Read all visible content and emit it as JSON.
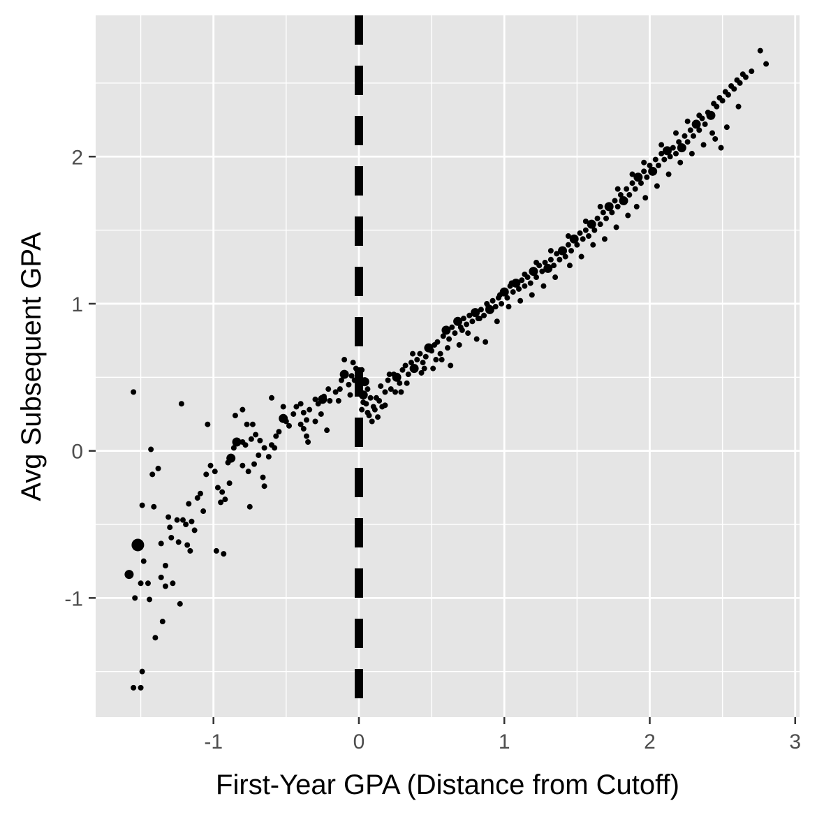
{
  "chart_data": {
    "type": "scatter",
    "title": "",
    "xlabel": "First-Year GPA (Distance from Cutoff)",
    "ylabel": "Avg Subsequent GPA",
    "xlim": [
      -1.81,
      3.03
    ],
    "ylim": [
      -1.81,
      2.96
    ],
    "x_ticks": [
      -1,
      0,
      1,
      2,
      3
    ],
    "x_tick_labels": [
      "-1",
      "0",
      "1",
      "2",
      "3"
    ],
    "y_ticks": [
      -1,
      0,
      1,
      2
    ],
    "y_tick_labels": [
      "-1",
      "0",
      "1",
      "2"
    ],
    "grid": true,
    "legend": "none",
    "cutoff_line": {
      "x": 0,
      "style": "dashed"
    },
    "colors": {
      "panel": "#e5e5e5",
      "grid": "#ffffff",
      "points": "#000000",
      "cutoff": "#000000"
    },
    "points": [
      [
        -1.55,
        0.4,
        1
      ],
      [
        -1.58,
        -0.84,
        2
      ],
      [
        -1.52,
        -0.64,
        3
      ],
      [
        -1.48,
        -0.75,
        1
      ],
      [
        -1.45,
        -0.9,
        1
      ],
      [
        -1.5,
        -0.9,
        1
      ],
      [
        -1.54,
        -1.0,
        1
      ],
      [
        -1.44,
        -1.01,
        1
      ],
      [
        -1.4,
        -1.27,
        1
      ],
      [
        -1.35,
        -1.16,
        1
      ],
      [
        -1.33,
        -0.92,
        1
      ],
      [
        -1.36,
        -0.86,
        1
      ],
      [
        -1.33,
        -0.78,
        1
      ],
      [
        -1.36,
        -0.63,
        1
      ],
      [
        -1.41,
        -0.38,
        1
      ],
      [
        -1.43,
        0.01,
        1
      ],
      [
        -1.42,
        -0.16,
        1
      ],
      [
        -1.38,
        -0.12,
        1
      ],
      [
        -1.49,
        -0.37,
        1
      ],
      [
        -1.55,
        -1.61,
        1
      ],
      [
        -1.49,
        -1.5,
        1
      ],
      [
        -1.5,
        -1.61,
        1
      ],
      [
        -1.28,
        -0.9,
        1
      ],
      [
        -1.23,
        -1.04,
        1
      ],
      [
        -1.29,
        -0.59,
        1
      ],
      [
        -1.24,
        -0.62,
        1
      ],
      [
        -1.3,
        -0.52,
        1
      ],
      [
        -1.31,
        -0.45,
        1
      ],
      [
        -1.25,
        -0.47,
        1
      ],
      [
        -1.21,
        -0.47,
        1
      ],
      [
        -1.19,
        -0.5,
        1
      ],
      [
        -1.15,
        -0.48,
        1
      ],
      [
        -1.17,
        -0.36,
        1
      ],
      [
        -1.13,
        -0.54,
        1
      ],
      [
        -1.18,
        -0.64,
        1
      ],
      [
        -1.16,
        -0.68,
        1
      ],
      [
        -1.11,
        -0.32,
        1
      ],
      [
        -1.09,
        -0.29,
        1
      ],
      [
        -1.07,
        -0.41,
        1
      ],
      [
        -1.05,
        -0.16,
        1
      ],
      [
        -1.02,
        -0.1,
        1
      ],
      [
        -0.99,
        -0.14,
        1
      ],
      [
        -0.97,
        -0.25,
        1
      ],
      [
        -0.94,
        -0.28,
        1
      ],
      [
        -0.95,
        -0.35,
        1
      ],
      [
        -0.92,
        -0.33,
        1
      ],
      [
        -0.89,
        -0.22,
        1
      ],
      [
        -0.9,
        -0.08,
        1
      ],
      [
        -0.88,
        -0.05,
        2
      ],
      [
        -0.86,
        0.02,
        1
      ],
      [
        -0.84,
        0.06,
        2
      ],
      [
        -0.8,
        0.06,
        1
      ],
      [
        -0.78,
        0.04,
        1
      ],
      [
        -0.8,
        -0.1,
        1
      ],
      [
        -0.76,
        -0.14,
        1
      ],
      [
        -0.72,
        -0.09,
        1
      ],
      [
        -0.69,
        -0.03,
        1
      ],
      [
        -0.74,
        0.08,
        1
      ],
      [
        -0.71,
        0.11,
        1
      ],
      [
        -0.68,
        0.07,
        1
      ],
      [
        -0.65,
        0.02,
        1
      ],
      [
        -0.62,
        -0.04,
        1
      ],
      [
        -0.6,
        0.04,
        1
      ],
      [
        -0.57,
        0.1,
        1
      ],
      [
        -0.55,
        0.13,
        1
      ],
      [
        -0.52,
        0.22,
        2
      ],
      [
        -0.5,
        0.2,
        1
      ],
      [
        -0.48,
        0.17,
        1
      ],
      [
        -0.45,
        0.25,
        1
      ],
      [
        -0.43,
        0.3,
        1
      ],
      [
        -0.4,
        0.32,
        1
      ],
      [
        -0.38,
        0.26,
        1
      ],
      [
        -0.36,
        0.21,
        1
      ],
      [
        -0.34,
        0.28,
        1
      ],
      [
        -0.3,
        0.35,
        1
      ],
      [
        -0.28,
        0.32,
        1
      ],
      [
        -0.26,
        0.25,
        1
      ],
      [
        -0.24,
        0.37,
        1
      ],
      [
        -0.21,
        0.42,
        1
      ],
      [
        -0.2,
        0.34,
        1
      ],
      [
        -0.16,
        0.4,
        1
      ],
      [
        -0.14,
        0.34,
        1
      ],
      [
        -0.12,
        0.48,
        1
      ],
      [
        -0.1,
        0.52,
        2
      ],
      [
        -0.07,
        0.45,
        1
      ],
      [
        -0.05,
        0.51,
        1
      ],
      [
        -0.03,
        0.48,
        1
      ],
      [
        -0.02,
        0.56,
        1
      ],
      [
        -1.22,
        0.32,
        1
      ],
      [
        -1.04,
        0.18,
        1
      ],
      [
        -0.85,
        0.24,
        1
      ],
      [
        -0.8,
        0.28,
        1
      ],
      [
        -0.77,
        0.18,
        1
      ],
      [
        -0.73,
        0.18,
        1
      ],
      [
        -0.98,
        -0.68,
        1
      ],
      [
        -0.93,
        -0.7,
        1
      ],
      [
        -0.65,
        -0.24,
        1
      ],
      [
        -0.66,
        -0.18,
        1
      ],
      [
        -0.75,
        -0.38,
        1
      ],
      [
        -0.58,
        0.02,
        1
      ],
      [
        -0.6,
        0.36,
        1
      ],
      [
        -0.52,
        0.3,
        1
      ],
      [
        -0.38,
        0.15,
        1
      ],
      [
        -0.35,
        0.06,
        1
      ],
      [
        -0.22,
        0.14,
        1
      ],
      [
        -0.13,
        0.42,
        1
      ],
      [
        -0.3,
        0.2,
        1
      ],
      [
        -0.36,
        0.1,
        1
      ],
      [
        -0.4,
        0.18,
        1
      ],
      [
        -0.25,
        0.35,
        2
      ],
      [
        -0.1,
        0.62,
        1
      ],
      [
        -0.04,
        0.6,
        1
      ],
      [
        -0.06,
        0.38,
        1
      ],
      [
        0.02,
        0.55,
        1
      ],
      [
        0.04,
        0.47,
        2
      ],
      [
        0.06,
        0.42,
        1
      ],
      [
        0.03,
        0.38,
        2
      ],
      [
        0.05,
        0.32,
        1
      ],
      [
        0.02,
        0.28,
        1
      ],
      [
        0.07,
        0.24,
        1
      ],
      [
        0.09,
        0.2,
        1
      ],
      [
        0.1,
        0.3,
        1
      ],
      [
        0.12,
        0.36,
        1
      ],
      [
        0.14,
        0.34,
        1
      ],
      [
        0.16,
        0.3,
        1
      ],
      [
        0.18,
        0.4,
        1
      ],
      [
        0.2,
        0.48,
        1
      ],
      [
        0.22,
        0.42,
        1
      ],
      [
        0.24,
        0.52,
        1
      ],
      [
        0.26,
        0.5,
        2
      ],
      [
        0.28,
        0.46,
        1
      ],
      [
        0.3,
        0.55,
        1
      ],
      [
        0.32,
        0.58,
        1
      ],
      [
        0.34,
        0.52,
        1
      ],
      [
        0.36,
        0.6,
        1
      ],
      [
        0.38,
        0.56,
        2
      ],
      [
        0.4,
        0.62,
        1
      ],
      [
        0.42,
        0.66,
        1
      ],
      [
        0.44,
        0.6,
        1
      ],
      [
        0.46,
        0.64,
        1
      ],
      [
        0.48,
        0.7,
        2
      ],
      [
        0.5,
        0.68,
        1
      ],
      [
        0.52,
        0.72,
        1
      ],
      [
        0.54,
        0.74,
        1
      ],
      [
        0.56,
        0.66,
        1
      ],
      [
        0.58,
        0.78,
        1
      ],
      [
        0.6,
        0.82,
        2
      ],
      [
        0.62,
        0.76,
        1
      ],
      [
        0.64,
        0.84,
        1
      ],
      [
        0.66,
        0.8,
        1
      ],
      [
        0.68,
        0.88,
        2
      ],
      [
        0.7,
        0.84,
        1
      ],
      [
        0.72,
        0.9,
        1
      ],
      [
        0.74,
        0.86,
        1
      ],
      [
        0.76,
        0.92,
        1
      ],
      [
        0.78,
        0.88,
        1
      ],
      [
        0.8,
        0.94,
        2
      ],
      [
        0.82,
        0.9,
        1
      ],
      [
        0.84,
        0.96,
        1
      ],
      [
        0.86,
        0.92,
        1
      ],
      [
        0.88,
        1.0,
        1
      ],
      [
        0.9,
        0.96,
        2
      ],
      [
        0.92,
        1.02,
        1
      ],
      [
        0.94,
        0.98,
        1
      ],
      [
        0.96,
        1.04,
        1
      ],
      [
        0.98,
        1.0,
        1
      ],
      [
        1.0,
        1.08,
        2
      ],
      [
        1.02,
        1.04,
        1
      ],
      [
        1.04,
        1.12,
        1
      ],
      [
        1.06,
        1.08,
        1
      ],
      [
        1.08,
        1.14,
        2
      ],
      [
        1.1,
        1.1,
        1
      ],
      [
        1.12,
        1.16,
        1
      ],
      [
        1.14,
        1.12,
        1
      ],
      [
        1.16,
        1.18,
        1
      ],
      [
        1.18,
        1.14,
        1
      ],
      [
        1.2,
        1.22,
        2
      ],
      [
        1.22,
        1.18,
        1
      ],
      [
        1.24,
        1.26,
        1
      ],
      [
        1.26,
        1.22,
        1
      ],
      [
        1.28,
        1.28,
        1
      ],
      [
        1.3,
        1.24,
        2
      ],
      [
        1.32,
        1.3,
        1
      ],
      [
        1.34,
        1.26,
        1
      ],
      [
        1.36,
        1.34,
        1
      ],
      [
        1.38,
        1.3,
        1
      ],
      [
        1.4,
        1.36,
        2
      ],
      [
        1.42,
        1.32,
        1
      ],
      [
        1.44,
        1.4,
        1
      ],
      [
        1.46,
        1.36,
        1
      ],
      [
        1.48,
        1.44,
        2
      ],
      [
        1.5,
        1.4,
        1
      ],
      [
        1.52,
        1.48,
        1
      ],
      [
        1.54,
        1.44,
        1
      ],
      [
        1.56,
        1.5,
        1
      ],
      [
        1.58,
        1.46,
        1
      ],
      [
        1.6,
        1.54,
        2
      ],
      [
        1.62,
        1.5,
        1
      ],
      [
        1.64,
        1.58,
        1
      ],
      [
        1.66,
        1.54,
        1
      ],
      [
        1.68,
        1.62,
        1
      ],
      [
        1.7,
        1.58,
        1
      ],
      [
        1.72,
        1.66,
        2
      ],
      [
        1.74,
        1.62,
        1
      ],
      [
        1.76,
        1.7,
        1
      ],
      [
        1.78,
        1.66,
        1
      ],
      [
        1.8,
        1.74,
        1
      ],
      [
        1.82,
        1.7,
        2
      ],
      [
        1.84,
        1.78,
        1
      ],
      [
        1.86,
        1.74,
        1
      ],
      [
        1.88,
        1.82,
        1
      ],
      [
        1.9,
        1.78,
        1
      ],
      [
        1.92,
        1.86,
        2
      ],
      [
        1.94,
        1.82,
        1
      ],
      [
        1.96,
        1.9,
        1
      ],
      [
        1.98,
        1.86,
        1
      ],
      [
        2.0,
        1.94,
        1
      ],
      [
        2.02,
        1.9,
        2
      ],
      [
        2.04,
        1.98,
        1
      ],
      [
        2.06,
        1.94,
        1
      ],
      [
        2.08,
        2.02,
        1
      ],
      [
        2.1,
        1.98,
        1
      ],
      [
        2.12,
        2.04,
        2
      ],
      [
        2.14,
        2.0,
        1
      ],
      [
        2.16,
        2.06,
        1
      ],
      [
        2.18,
        2.02,
        1
      ],
      [
        2.2,
        2.1,
        1
      ],
      [
        2.22,
        2.06,
        2
      ],
      [
        2.24,
        2.14,
        1
      ],
      [
        2.26,
        2.1,
        1
      ],
      [
        2.28,
        2.18,
        1
      ],
      [
        2.3,
        2.14,
        1
      ],
      [
        2.32,
        2.22,
        2
      ],
      [
        2.34,
        2.18,
        1
      ],
      [
        2.36,
        2.26,
        1
      ],
      [
        2.38,
        2.22,
        1
      ],
      [
        2.4,
        2.3,
        1
      ],
      [
        2.42,
        2.28,
        2
      ],
      [
        2.44,
        2.36,
        1
      ],
      [
        2.46,
        2.34,
        1
      ],
      [
        2.48,
        2.4,
        1
      ],
      [
        2.5,
        2.38,
        1
      ],
      [
        2.52,
        2.44,
        1
      ],
      [
        2.54,
        2.42,
        1
      ],
      [
        2.56,
        2.48,
        1
      ],
      [
        2.58,
        2.46,
        1
      ],
      [
        2.6,
        2.52,
        1
      ],
      [
        2.62,
        2.5,
        1
      ],
      [
        2.64,
        2.56,
        1
      ],
      [
        2.66,
        2.54,
        1
      ],
      [
        2.7,
        2.58,
        1
      ],
      [
        2.76,
        2.72,
        1
      ],
      [
        2.8,
        2.63,
        1
      ],
      [
        0.06,
        0.26,
        1
      ],
      [
        0.13,
        0.23,
        1
      ],
      [
        0.18,
        0.31,
        1
      ],
      [
        0.21,
        0.52,
        1
      ],
      [
        0.29,
        0.4,
        1
      ],
      [
        0.37,
        0.66,
        1
      ],
      [
        0.43,
        0.53,
        1
      ],
      [
        0.51,
        0.56,
        1
      ],
      [
        0.57,
        0.62,
        1
      ],
      [
        0.63,
        0.58,
        1
      ],
      [
        0.69,
        0.72,
        1
      ],
      [
        0.75,
        0.8,
        1
      ],
      [
        0.81,
        0.76,
        1
      ],
      [
        0.87,
        0.74,
        1
      ],
      [
        0.95,
        0.88,
        1
      ],
      [
        1.03,
        0.98,
        1
      ],
      [
        1.11,
        1.02,
        1
      ],
      [
        1.19,
        1.06,
        1
      ],
      [
        1.27,
        1.12,
        1
      ],
      [
        1.35,
        1.18,
        1
      ],
      [
        1.45,
        1.26,
        1
      ],
      [
        1.53,
        1.32,
        1
      ],
      [
        1.61,
        1.4,
        1
      ],
      [
        1.69,
        1.44,
        1
      ],
      [
        1.77,
        1.52,
        1
      ],
      [
        1.85,
        1.6,
        1
      ],
      [
        1.91,
        1.66,
        1
      ],
      [
        1.97,
        1.72,
        1
      ],
      [
        2.05,
        1.8,
        1
      ],
      [
        2.13,
        1.88,
        1
      ],
      [
        2.21,
        1.96,
        1
      ],
      [
        2.29,
        2.02,
        1
      ],
      [
        2.37,
        2.08,
        1
      ],
      [
        2.45,
        2.12,
        1
      ],
      [
        2.53,
        2.2,
        1
      ],
      [
        2.61,
        2.34,
        1
      ],
      [
        2.49,
        2.06,
        1
      ],
      [
        2.43,
        2.16,
        1
      ],
      [
        2.34,
        2.28,
        1
      ],
      [
        2.26,
        2.24,
        1
      ],
      [
        2.18,
        2.16,
        1
      ],
      [
        2.08,
        2.08,
        1
      ],
      [
        1.96,
        1.96,
        1
      ],
      [
        1.88,
        1.88,
        1
      ],
      [
        1.78,
        1.78,
        1
      ],
      [
        1.66,
        1.66,
        1
      ],
      [
        1.56,
        1.56,
        1
      ],
      [
        1.44,
        1.46,
        1
      ],
      [
        1.32,
        1.36,
        1
      ],
      [
        1.22,
        1.28,
        1
      ],
      [
        1.14,
        1.2,
        1
      ],
      [
        1.05,
        1.14,
        1
      ],
      [
        0.97,
        1.06,
        1
      ],
      [
        0.89,
        0.98,
        1
      ],
      [
        0.83,
        0.9,
        1
      ],
      [
        0.71,
        0.82,
        1
      ],
      [
        0.61,
        0.7,
        1
      ],
      [
        0.53,
        0.62,
        1
      ],
      [
        0.45,
        0.56,
        1
      ],
      [
        0.33,
        0.46,
        1
      ],
      [
        0.25,
        0.4,
        1
      ],
      [
        0.15,
        0.44,
        1
      ],
      [
        0.08,
        0.36,
        1
      ],
      [
        0.01,
        0.44,
        1
      ],
      [
        0.03,
        0.33,
        1
      ],
      [
        0.11,
        0.28,
        1
      ]
    ]
  }
}
